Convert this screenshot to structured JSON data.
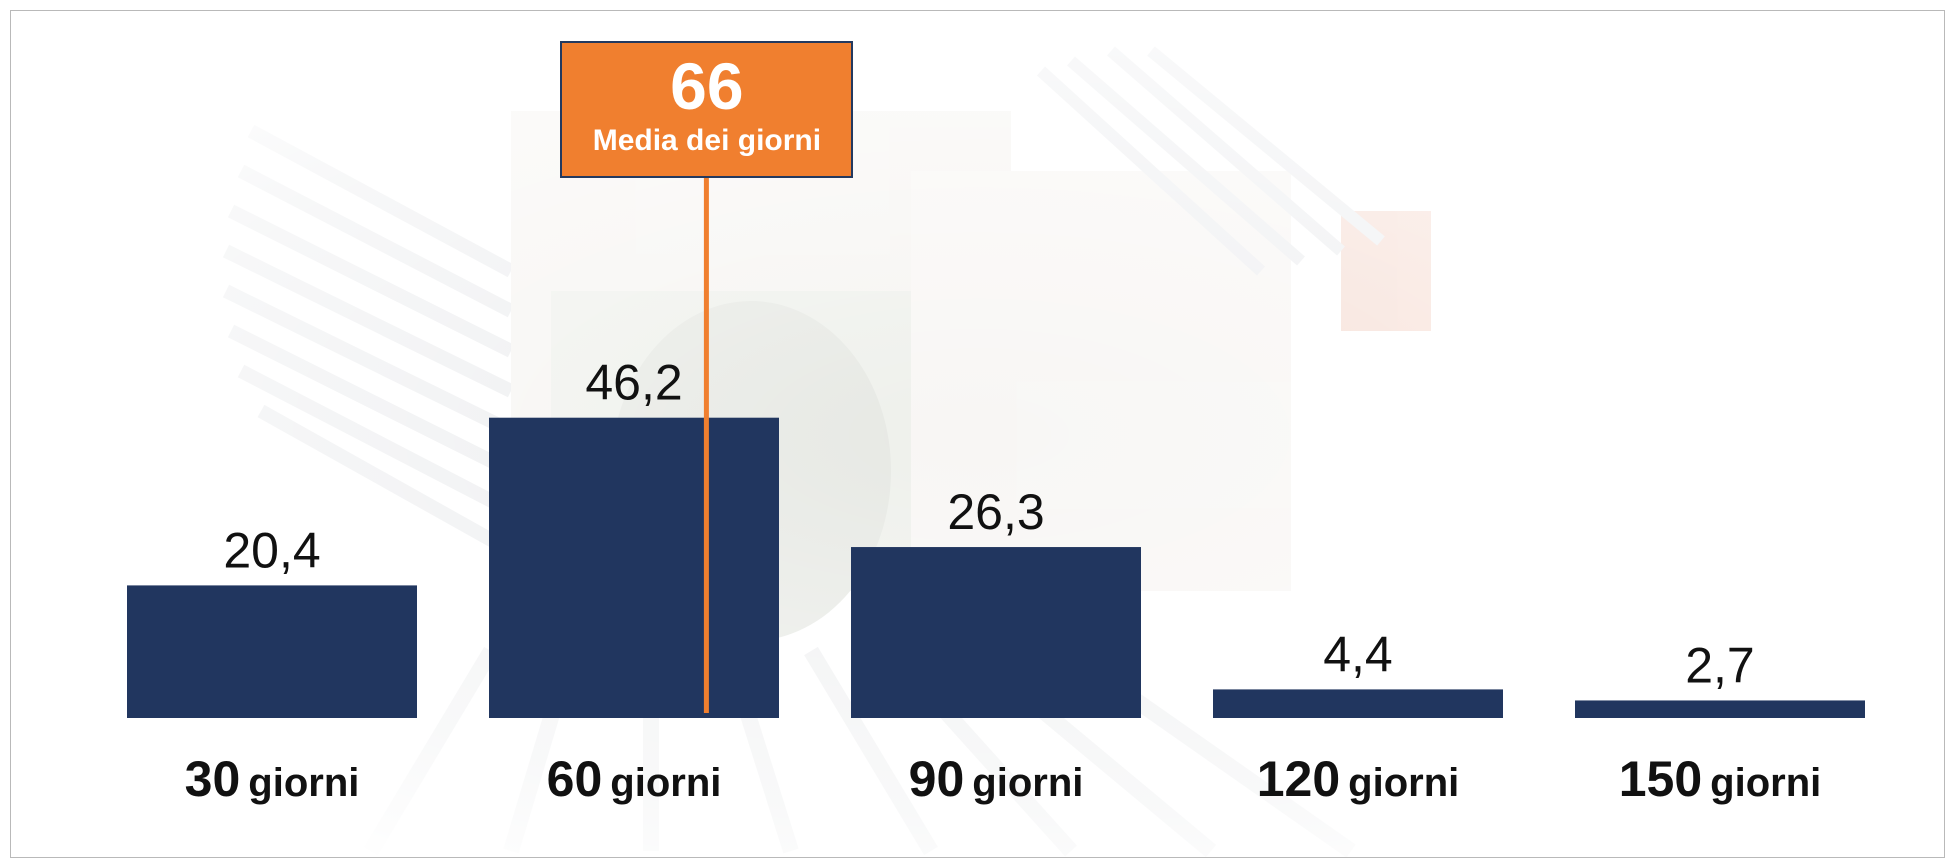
{
  "chart_data": {
    "type": "bar",
    "categories": [
      {
        "number": "30",
        "unit": "giorni"
      },
      {
        "number": "60",
        "unit": "giorni"
      },
      {
        "number": "90",
        "unit": "giorni"
      },
      {
        "number": "120",
        "unit": "giorni"
      },
      {
        "number": "150",
        "unit": "giorni"
      }
    ],
    "values": [
      20.4,
      46.2,
      26.3,
      4.4,
      2.7
    ],
    "value_labels": [
      "20,4",
      "46,2",
      "26,3",
      "4,4",
      "2,7"
    ],
    "ylim": [
      0,
      100
    ],
    "grid": false,
    "bar_color": "#21365f",
    "annotation": {
      "value": "66",
      "label": "Media dei giorni",
      "x_value": 66,
      "color": "#f07f2f",
      "border_color": "#23395f"
    }
  }
}
